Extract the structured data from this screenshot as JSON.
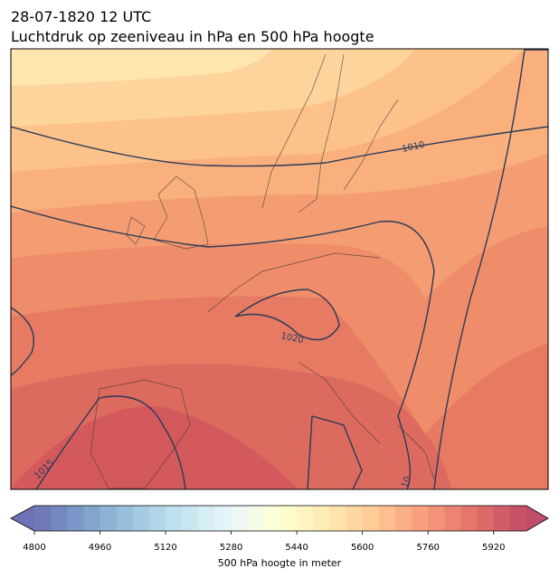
{
  "header": {
    "line1": "28-07-1820 12 UTC",
    "line2": "Luchtdruk op zeeniveau in hPa en 500 hPa hoogte"
  },
  "isobar_labels": [
    1010,
    1020,
    1015,
    10
  ],
  "colorbar": {
    "label": "500 hPa hoogte in meter",
    "lim": [
      4800,
      6000
    ],
    "step": 40,
    "ticks": [
      4800,
      4960,
      5120,
      5280,
      5440,
      5600,
      5760,
      5920
    ]
  }
}
